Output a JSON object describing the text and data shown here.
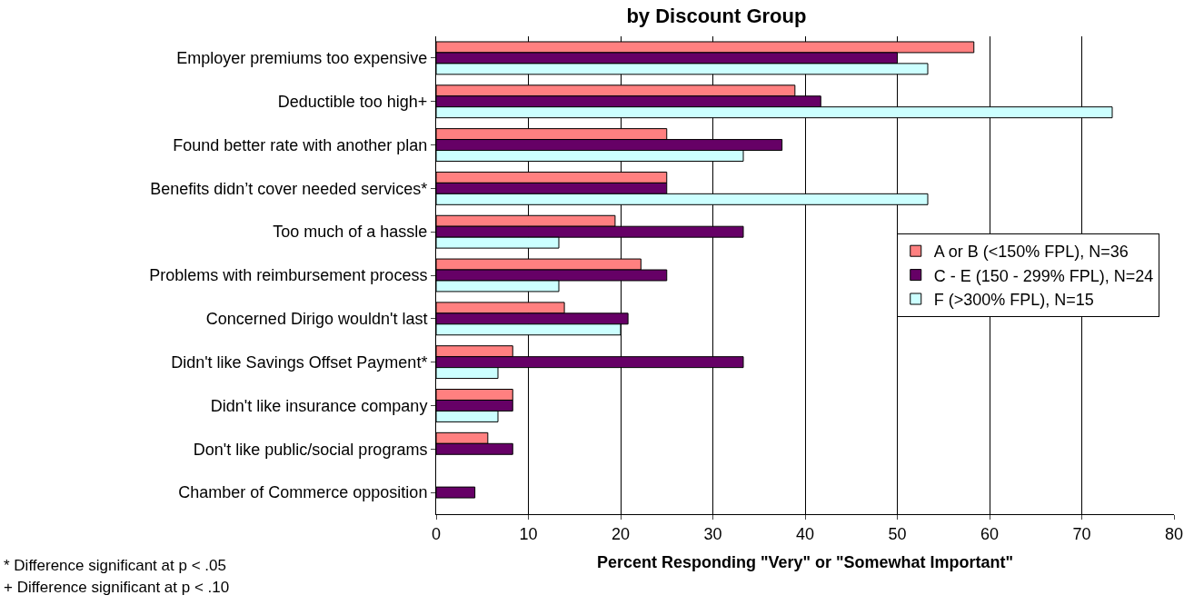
{
  "chart_data": {
    "type": "bar",
    "orientation": "horizontal",
    "title": "by Discount Group",
    "xlabel": "Percent Responding \"Very\" or \"Somewhat Important\"",
    "categories": [
      "Employer premiums too expensive",
      "Deductible too high+",
      "Found better rate with another plan",
      "Benefits didn’t cover needed services*",
      "Too much of a hassle",
      "Problems with reimbursement process",
      "Concerned Dirigo wouldn't last",
      "Didn't like Savings Offset Payment*",
      "Didn't like insurance company",
      "Don't like public/social programs",
      "Chamber of Commerce opposition"
    ],
    "series": [
      {
        "name": "A or B (<150% FPL), N=36",
        "color": "#ff8080",
        "values": [
          58.3,
          38.9,
          25,
          25,
          19.4,
          22.2,
          13.9,
          8.3,
          8.3,
          5.6,
          null
        ]
      },
      {
        "name": "C - E (150 - 299% FPL), N=24",
        "color": "#660066",
        "values": [
          50,
          41.7,
          37.5,
          25,
          33.3,
          25,
          20.8,
          33.3,
          8.3,
          8.3,
          4.2
        ]
      },
      {
        "name": "F (>300% FPL), N=15",
        "color": "#ccffff",
        "values": [
          53.3,
          73.3,
          33.3,
          53.3,
          13.3,
          13.3,
          20,
          6.7,
          6.7,
          null,
          null
        ]
      }
    ],
    "xlim": [
      0,
      80
    ],
    "xticks": [
      0,
      10,
      20,
      30,
      40,
      50,
      60,
      70,
      80
    ],
    "grid": "x",
    "legend": "right",
    "annotations": [
      "* Difference significant at p < .05",
      "+ Difference significant at p < .10"
    ]
  }
}
